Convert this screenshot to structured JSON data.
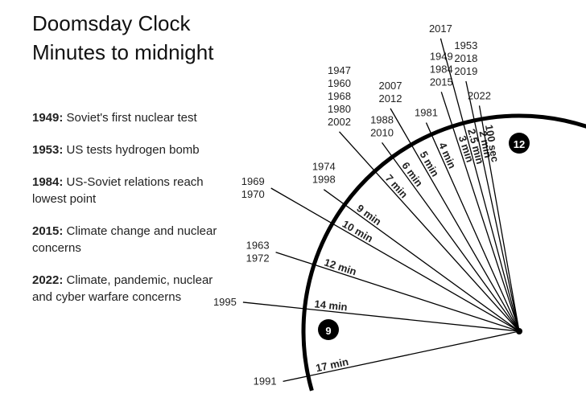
{
  "chart_data": {
    "type": "clock",
    "title": "Doomsday Clock",
    "subtitle": "Minutes to midnight",
    "annotations": [
      {
        "label": "1949:",
        "text": "Soviet's first nuclear test"
      },
      {
        "label": "1953:",
        "text": "US tests hydrogen bomb"
      },
      {
        "label": "1984:",
        "text": "US-Soviet relations reach lowest point"
      },
      {
        "label": "2015:",
        "text": "Climate change and nuclear concerns"
      },
      {
        "label": "2022:",
        "text": "Climate, pandemic, nuclear and cyber warfare concerns"
      }
    ],
    "dial_labels": {
      "top": "12",
      "left": "9"
    },
    "categories": [
      [
        "1991"
      ],
      [
        "1995"
      ],
      [
        "1963",
        "1972"
      ],
      [
        "1969",
        "1970"
      ],
      [
        "1974",
        "1998"
      ],
      [
        "1947",
        "1960",
        "1968",
        "1980",
        "2002"
      ],
      [
        "1988",
        "2010"
      ],
      [
        "2007",
        "2012"
      ],
      [
        "1981"
      ],
      [
        "1949",
        "1984",
        "2015"
      ],
      [
        "2017"
      ],
      [
        "1953",
        "2018",
        "2019"
      ],
      [
        "2022"
      ]
    ],
    "values": [
      17,
      14,
      12,
      10,
      9,
      7,
      6,
      5,
      4,
      3,
      2.5,
      2,
      1.6667
    ],
    "value_labels": [
      "17 min",
      "14 min",
      "12 min",
      "10 min",
      "9 min",
      "7 min",
      "6 min",
      "5 min",
      "4 min",
      "3 min",
      "2.5 min",
      "2 min",
      "100 sec"
    ],
    "color": "#000000"
  }
}
